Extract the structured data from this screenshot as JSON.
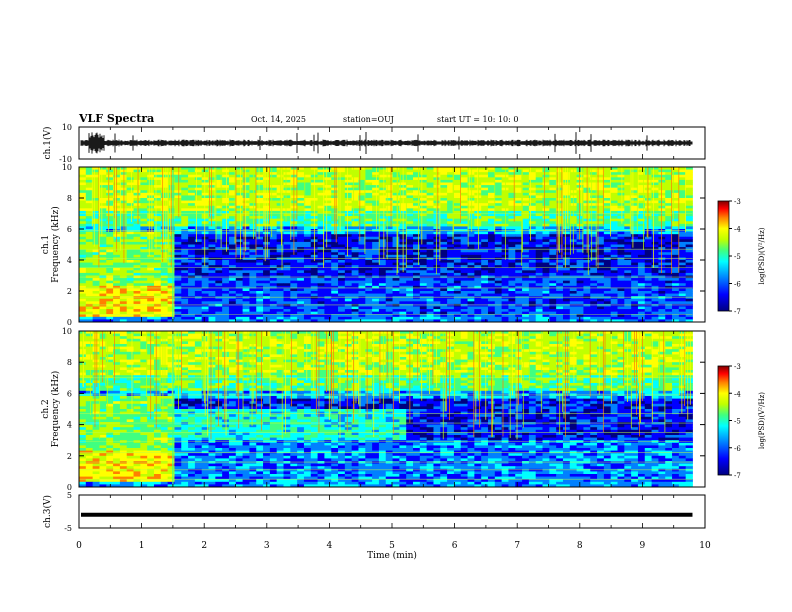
{
  "header": {
    "title": "VLF Spectra",
    "date": "Oct. 14, 2025",
    "station": "station=OUJ",
    "start": "start UT =  10: 10: 0"
  },
  "chart_data": [
    {
      "type": "line",
      "title": "",
      "ylabel": "ch.1(V)",
      "xlim": [
        0,
        10
      ],
      "ylim": [
        -10,
        10
      ],
      "yticks": [
        "10",
        "-10"
      ],
      "description": "waveform trace near zero with brief bursts"
    },
    {
      "type": "heatmap",
      "ylabel_lines": [
        "ch.1",
        "Frequency (kHz)"
      ],
      "xlim": [
        0,
        10
      ],
      "ylim": [
        0,
        10
      ],
      "yticks": [
        "0",
        "2",
        "4",
        "6",
        "8",
        "10"
      ],
      "data_end_min": 9.8,
      "transition_min": 1.5,
      "colorbar": {
        "label": "log(PSD)(V²/Hz)",
        "ticks": [
          "-3",
          "-4",
          "-5",
          "-6",
          "-7"
        ],
        "range": [
          -7,
          -3
        ]
      }
    },
    {
      "type": "heatmap",
      "ylabel_lines": [
        "ch.2",
        "Frequency (kHz)"
      ],
      "xlim": [
        0,
        10
      ],
      "ylim": [
        0,
        10
      ],
      "yticks": [
        "0",
        "2",
        "4",
        "6",
        "8",
        "10"
      ],
      "data_end_min": 9.8,
      "transition_min": 1.5,
      "secondary_transition_min": 5.15,
      "colorbar": {
        "label": "log(PSD)(V²/Hz)",
        "ticks": [
          "-3",
          "-4",
          "-5",
          "-6",
          "-7"
        ],
        "range": [
          -7,
          -3
        ]
      }
    },
    {
      "type": "line",
      "ylabel": "ch.3(V)",
      "xlim": [
        0,
        10
      ],
      "ylim": [
        -5,
        5
      ],
      "yticks": [
        "5",
        "-5"
      ],
      "values_constant": -1
    }
  ],
  "x_axis": {
    "label": "Time (min)",
    "ticks": [
      "0",
      "1",
      "2",
      "3",
      "4",
      "5",
      "6",
      "7",
      "8",
      "9",
      "10"
    ]
  },
  "colormap": [
    "#000080",
    "#0000ff",
    "#0080ff",
    "#00ffff",
    "#40ff80",
    "#c0ff00",
    "#ffff00",
    "#ff8000",
    "#ff0000",
    "#800000"
  ]
}
